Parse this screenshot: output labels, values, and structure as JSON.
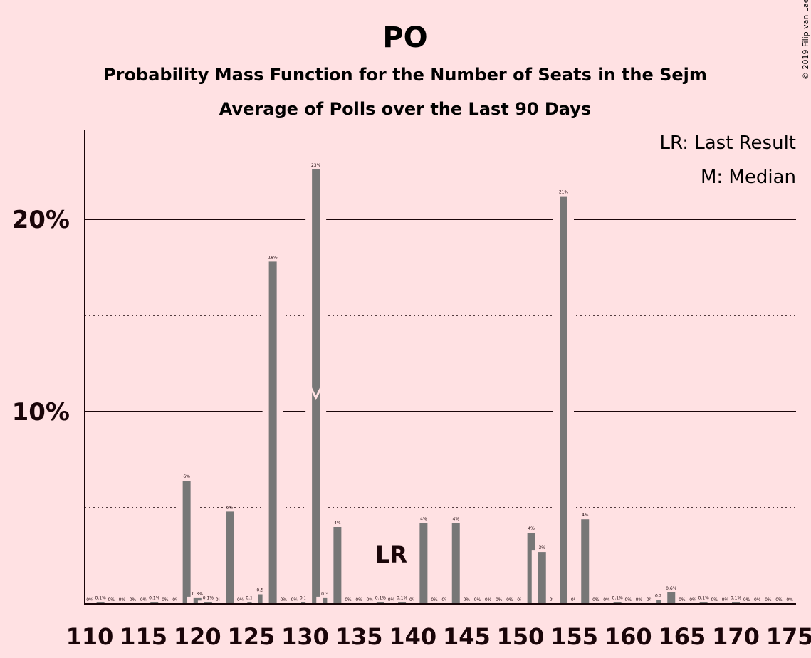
{
  "chart_data": {
    "type": "bar",
    "title": "PO",
    "subtitle": "Probability Mass Function for the Number of Seats in the Sejm",
    "subtitle2": "Average of Polls over the Last 90 Days",
    "copyright": "© 2019 Filip van Laenen",
    "legend": [
      "LR: Last Result",
      "M: Median"
    ],
    "legend_position": "top-right",
    "last_result_seat": 138,
    "last_result_label": "LR",
    "median_seat": 131,
    "median_marker": "M",
    "xlim": [
      110,
      175
    ],
    "ylim": [
      0,
      24.5
    ],
    "xticks": [
      110,
      115,
      120,
      125,
      130,
      135,
      140,
      145,
      150,
      155,
      160,
      165,
      170,
      175
    ],
    "yticks_labeled": [
      {
        "value": 10,
        "label": "10%"
      },
      {
        "value": 20,
        "label": "20%"
      }
    ],
    "gridlines_solid": [
      10,
      20
    ],
    "gridlines_dotted": [
      5,
      15
    ],
    "bar_color": "#777777",
    "background_color": "#FFE1E3",
    "text_color": "#1a0509",
    "bars": [
      {
        "seats": 110,
        "value": 0,
        "label": "0%"
      },
      {
        "seats": 111,
        "value": 0.1,
        "label": "0.1%"
      },
      {
        "seats": 112,
        "value": 0,
        "label": "0%"
      },
      {
        "seats": 113,
        "value": 0,
        "label": "0%"
      },
      {
        "seats": 114,
        "value": 0,
        "label": "0%"
      },
      {
        "seats": 115,
        "value": 0,
        "label": "0%"
      },
      {
        "seats": 116,
        "value": 0.1,
        "label": "0.1%"
      },
      {
        "seats": 117,
        "value": 0,
        "label": "0%"
      },
      {
        "seats": 118,
        "value": 0,
        "label": "0%"
      },
      {
        "seats": 119,
        "value": 6.4,
        "label": "6%"
      },
      {
        "seats": 120,
        "value": 0.3,
        "label": "0.3%"
      },
      {
        "seats": 121,
        "value": 0.1,
        "label": "0.1%"
      },
      {
        "seats": 122,
        "value": 0,
        "label": "0%"
      },
      {
        "seats": 123,
        "value": 4.8,
        "label": "5%"
      },
      {
        "seats": 124,
        "value": 0,
        "label": "0%"
      },
      {
        "seats": 125,
        "value": 0.1,
        "label": "0.1%"
      },
      {
        "seats": 126,
        "value": 0.5,
        "label": "0.5%"
      },
      {
        "seats": 127,
        "value": 17.8,
        "label": "18%"
      },
      {
        "seats": 128,
        "value": 0,
        "label": "0%"
      },
      {
        "seats": 129,
        "value": 0,
        "label": "0%"
      },
      {
        "seats": 130,
        "value": 0.1,
        "label": "0.1%"
      },
      {
        "seats": 131,
        "value": 22.6,
        "label": "23%"
      },
      {
        "seats": 132,
        "value": 0.3,
        "label": "0.3%"
      },
      {
        "seats": 133,
        "value": 4.0,
        "label": "4%"
      },
      {
        "seats": 134,
        "value": 0,
        "label": "0%"
      },
      {
        "seats": 135,
        "value": 0,
        "label": "0%"
      },
      {
        "seats": 136,
        "value": 0,
        "label": "0%"
      },
      {
        "seats": 137,
        "value": 0.1,
        "label": "0.1%"
      },
      {
        "seats": 138,
        "value": 0,
        "label": "0%"
      },
      {
        "seats": 139,
        "value": 0.1,
        "label": "0.1%"
      },
      {
        "seats": 140,
        "value": 0,
        "label": "0%"
      },
      {
        "seats": 141,
        "value": 4.2,
        "label": "4%"
      },
      {
        "seats": 142,
        "value": 0,
        "label": "0%"
      },
      {
        "seats": 143,
        "value": 0,
        "label": "0%"
      },
      {
        "seats": 144,
        "value": 4.2,
        "label": "4%"
      },
      {
        "seats": 145,
        "value": 0,
        "label": "0%"
      },
      {
        "seats": 146,
        "value": 0,
        "label": "0%"
      },
      {
        "seats": 147,
        "value": 0,
        "label": "0%"
      },
      {
        "seats": 148,
        "value": 0,
        "label": "0%"
      },
      {
        "seats": 149,
        "value": 0,
        "label": "0%"
      },
      {
        "seats": 150,
        "value": 0,
        "label": "0%"
      },
      {
        "seats": 151,
        "value": 3.7,
        "label": "4%"
      },
      {
        "seats": 152,
        "value": 2.7,
        "label": "3%"
      },
      {
        "seats": 153,
        "value": 0,
        "label": "0%"
      },
      {
        "seats": 154,
        "value": 21.2,
        "label": "21%"
      },
      {
        "seats": 155,
        "value": 0,
        "label": "0%"
      },
      {
        "seats": 156,
        "value": 4.4,
        "label": "4%"
      },
      {
        "seats": 157,
        "value": 0,
        "label": "0%"
      },
      {
        "seats": 158,
        "value": 0,
        "label": "0%"
      },
      {
        "seats": 159,
        "value": 0.1,
        "label": "0.1%"
      },
      {
        "seats": 160,
        "value": 0,
        "label": "0%"
      },
      {
        "seats": 161,
        "value": 0,
        "label": "0%"
      },
      {
        "seats": 162,
        "value": 0,
        "label": "0%"
      },
      {
        "seats": 163,
        "value": 0.2,
        "label": "0.2%"
      },
      {
        "seats": 164,
        "value": 0.6,
        "label": "0.6%"
      },
      {
        "seats": 165,
        "value": 0,
        "label": "0%"
      },
      {
        "seats": 166,
        "value": 0,
        "label": "0%"
      },
      {
        "seats": 167,
        "value": 0.1,
        "label": "0.1%"
      },
      {
        "seats": 168,
        "value": 0,
        "label": "0%"
      },
      {
        "seats": 169,
        "value": 0,
        "label": "0%"
      },
      {
        "seats": 170,
        "value": 0.1,
        "label": "0.1%"
      },
      {
        "seats": 171,
        "value": 0,
        "label": "0%"
      },
      {
        "seats": 172,
        "value": 0,
        "label": "0%"
      },
      {
        "seats": 173,
        "value": 0,
        "label": "0%"
      },
      {
        "seats": 174,
        "value": 0,
        "label": "0%"
      },
      {
        "seats": 175,
        "value": 0,
        "label": "0%"
      }
    ]
  }
}
